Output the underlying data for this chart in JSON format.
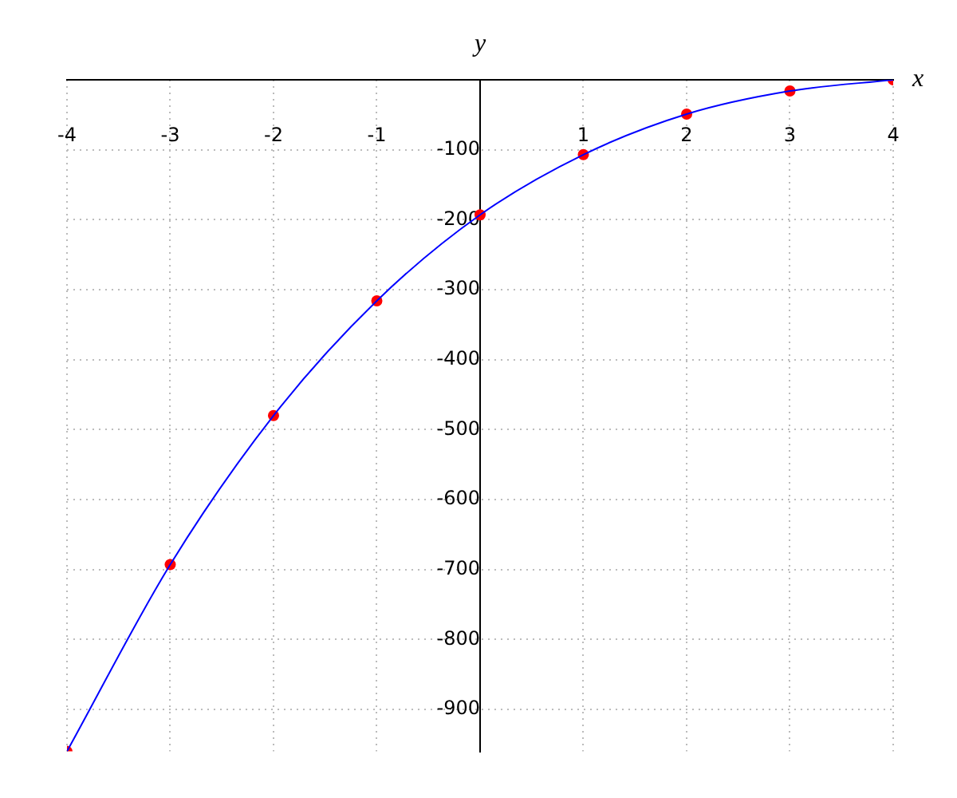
{
  "chart_data": {
    "type": "line",
    "xlabel": "x",
    "ylabel": "y",
    "x": [
      -4,
      -3,
      -2,
      -1,
      0,
      1,
      2,
      3,
      4
    ],
    "series": [
      {
        "color": "#0000ff",
        "marker": "none",
        "values": [
          -960,
          -693,
          -480,
          -316,
          -193,
          -107,
          -49,
          -16,
          0
        ]
      },
      {
        "type": "scatter",
        "color": "#ff0000",
        "marker": "circle",
        "values": [
          -960,
          -693,
          -480,
          -316,
          -193,
          -107,
          -49,
          -16,
          0
        ]
      }
    ],
    "xlim": [
      -4,
      4
    ],
    "ylim": [
      -960,
      0
    ],
    "xticks": [
      -4,
      -3,
      -2,
      -1,
      1,
      2,
      3,
      4
    ],
    "yticks": [
      -900,
      -800,
      -700,
      -600,
      -500,
      -400,
      -300,
      -200,
      -100
    ],
    "grid": true,
    "legend": false
  }
}
